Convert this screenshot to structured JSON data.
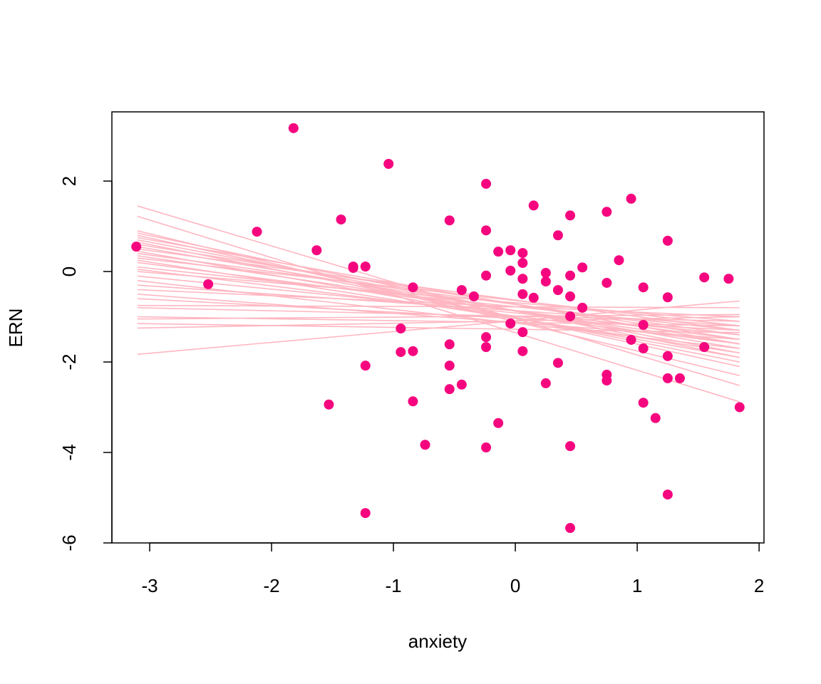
{
  "chart_data": {
    "type": "scatter",
    "xlabel": "anxiety",
    "ylabel": "ERN",
    "xlim": [
      -3.31,
      2.04
    ],
    "ylim": [
      -6,
      3.53
    ],
    "xticks": [
      -3,
      -2,
      -1,
      0,
      1,
      2
    ],
    "yticks": [
      -6,
      -4,
      -2,
      0,
      2
    ],
    "color": "#f5067f",
    "fit_color": "#ffb6c1",
    "x": [
      -3.11,
      -2.52,
      -2.12,
      -1.82,
      -1.63,
      -1.53,
      -1.43,
      -1.33,
      -1.33,
      -1.23,
      -1.23,
      -1.23,
      -1.04,
      -0.94,
      -0.94,
      -0.84,
      -0.84,
      -0.84,
      -0.74,
      -0.54,
      -0.54,
      -0.54,
      -0.54,
      -0.44,
      -0.44,
      -0.34,
      -0.24,
      -0.24,
      -0.24,
      -0.24,
      -0.24,
      -0.24,
      -0.14,
      -0.14,
      -0.04,
      -0.04,
      -0.04,
      0.06,
      0.06,
      0.06,
      0.06,
      0.06,
      0.06,
      0.15,
      0.15,
      0.25,
      0.25,
      0.25,
      0.35,
      0.35,
      0.35,
      0.45,
      0.45,
      0.45,
      0.45,
      0.45,
      0.45,
      0.55,
      0.55,
      0.75,
      0.75,
      0.75,
      0.75,
      0.85,
      0.95,
      0.95,
      1.05,
      1.05,
      1.05,
      1.05,
      1.15,
      1.25,
      1.25,
      1.25,
      1.25,
      1.25,
      1.35,
      1.55,
      1.55,
      1.75,
      1.84
    ],
    "values": [
      0.55,
      -0.28,
      0.88,
      3.17,
      0.47,
      -2.94,
      1.15,
      0.11,
      0.08,
      0.11,
      -2.08,
      -5.34,
      2.38,
      -1.26,
      -1.78,
      -0.35,
      -1.76,
      -2.87,
      -3.83,
      1.13,
      -1.61,
      -2.08,
      -2.6,
      -0.41,
      -2.5,
      -0.55,
      1.94,
      0.91,
      -0.09,
      -1.45,
      -1.67,
      -3.89,
      0.44,
      -3.35,
      0.47,
      0.02,
      -1.15,
      0.41,
      0.19,
      -0.16,
      -0.5,
      -1.34,
      -1.76,
      1.46,
      -0.58,
      -0.03,
      -0.22,
      -2.47,
      0.8,
      -0.41,
      -2.02,
      1.24,
      -0.09,
      -0.55,
      -0.99,
      -3.86,
      -5.67,
      0.09,
      -0.8,
      1.32,
      -0.25,
      -2.28,
      -2.41,
      0.25,
      1.61,
      -1.51,
      -0.35,
      -1.18,
      -1.7,
      -2.9,
      -3.24,
      0.68,
      -0.57,
      -1.87,
      -2.36,
      -4.93,
      -2.36,
      -0.13,
      -1.67,
      -0.16,
      -3.0
    ],
    "fit_x": [
      -3.1,
      1.84
    ],
    "fits": [
      [
        1.45,
        -2.52
      ],
      [
        1.22,
        -2.88
      ],
      [
        0.9,
        -2.3
      ],
      [
        0.85,
        -1.9
      ],
      [
        0.8,
        -2.1
      ],
      [
        0.75,
        -1.6
      ],
      [
        0.7,
        -1.8
      ],
      [
        0.65,
        -2.0
      ],
      [
        0.6,
        -1.5
      ],
      [
        0.55,
        -1.7
      ],
      [
        0.5,
        -1.3
      ],
      [
        0.45,
        -1.9
      ],
      [
        0.4,
        -1.4
      ],
      [
        0.35,
        -1.6
      ],
      [
        0.3,
        -1.2
      ],
      [
        0.25,
        -1.8
      ],
      [
        0.2,
        -1.5
      ],
      [
        0.1,
        -1.3
      ],
      [
        0.05,
        -1.6
      ],
      [
        0,
        -1.1
      ],
      [
        -0.1,
        -1.4
      ],
      [
        -0.2,
        -1.7
      ],
      [
        -0.3,
        -1.2
      ],
      [
        -0.4,
        -1.0
      ],
      [
        -0.5,
        -1.5
      ],
      [
        -0.6,
        -1.3
      ],
      [
        -0.75,
        -0.8
      ],
      [
        -0.8,
        -1.1
      ],
      [
        -1.0,
        -1.2
      ],
      [
        -1.05,
        -0.95
      ],
      [
        -1.15,
        -1.35
      ],
      [
        -1.25,
        -1.0
      ],
      [
        -1.83,
        -0.65
      ]
    ]
  }
}
